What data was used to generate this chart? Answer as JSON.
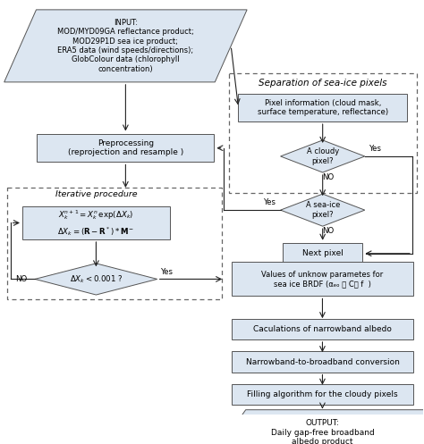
{
  "bg_color": "#ffffff",
  "box_fill": "#dce6f1",
  "box_edge": "#555555",
  "dashed_edge": "#666666",
  "arrow_color": "#222222",
  "input_text": "INPUT:\nMOD/MYD09GA reflectance product;\nMOD29P1D sea ice product;\nERA5 data (wind speeds/directions);\nGlobColour data (chlorophyll\nconcentration)",
  "preprocess_text": "Preprocessing\n(reprojection and resample )",
  "iterative_title": "Iterative procedure",
  "formula1": "$X_k^{n+1} = X_k^n\\,\\mathrm{exp}(\\Delta X_k)$",
  "formula2": "$\\Delta X_k = (\\mathbf{R} - \\mathbf{R}^*) * \\mathbf{M}^-$",
  "diamond_iter_text": "$\\Delta X_k < 0.001$ ?",
  "no_label": "NO",
  "yes_label": "Yes",
  "sep_title": "Separation of sea-ice pixels",
  "pixel_info_text": "Pixel information (cloud mask,\nsurface temperature, reflectance)",
  "cloudy_text": "A cloudy\npixel?",
  "seaice_text": "A sea-ice\npixel?",
  "next_pixel_text": "Next pixel",
  "values_text": "Values of unknow parametes for\nsea ice BRDF (αₑₒ ， C， f  )",
  "narrowband_text": "Caculations of narrowband albedo",
  "nb2bb_text": "Narrowband-to-broadband conversion",
  "filling_text": "Filling algorithm for the cloudy pixels",
  "output_text": "OUTPUT:\nDaily gap-free broadband\nalbedo product"
}
